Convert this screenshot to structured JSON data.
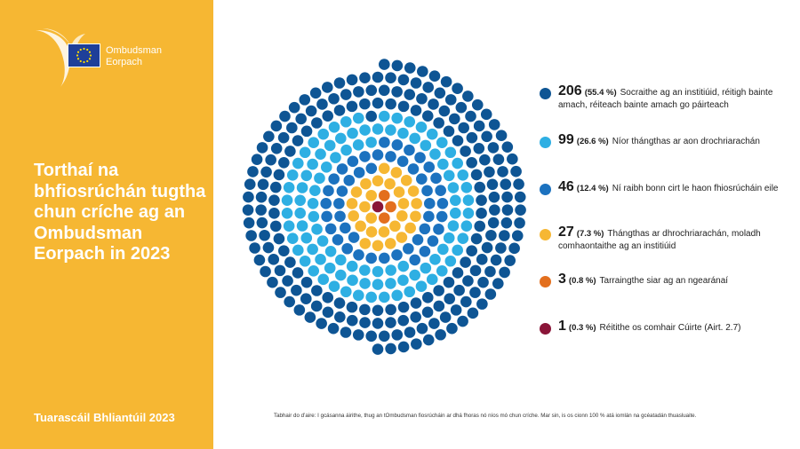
{
  "sidebar": {
    "logo": {
      "line1": "Ombudsman",
      "line2": "Eorpach"
    },
    "title": "Torthaí na bhfiosrúchán tugtha chun críche ag an Ombudsman Eorpach in 2023",
    "footer": "Tuarascáil Bhliantúil 2023"
  },
  "colors": {
    "sidebar": "#F6B733",
    "series": [
      "#0E5594",
      "#2EAFE3",
      "#1C72BF",
      "#F6B733",
      "#E36F1E",
      "#8A1538"
    ]
  },
  "chart_data": {
    "type": "dot-matrix",
    "series": [
      {
        "name": "Socraithe ag an institiúid, réitigh bainte amach, réiteach bainte amach go páirteach",
        "value": 206,
        "percent": "55.4 %"
      },
      {
        "name": "Níor thángthas ar aon drochriarachán",
        "value": 99,
        "percent": "26.6 %"
      },
      {
        "name": "Ní raibh bonn cirt le haon fhiosrúcháin eile",
        "value": 46,
        "percent": "12.4 %"
      },
      {
        "name": "Thángthas ar dhrochriarachán, moladh comhaontaithe ag an institiúid",
        "value": 27,
        "percent": "7.3 %"
      },
      {
        "name": "Tarraingthe siar ag an ngearánaí",
        "value": 3,
        "percent": "0.8 %"
      },
      {
        "name": "Réitithe os comhair Cúirte (Airt. 2.7)",
        "value": 1,
        "percent": "0.3 %"
      }
    ]
  },
  "legend": [
    {
      "value": "206",
      "pct": "(55.4 %)",
      "label": "Socraithe ag an institiúid, réitigh bainte amach, réiteach bainte amach go páirteach"
    },
    {
      "value": "99",
      "pct": "(26.6 %)",
      "label": "Níor thángthas ar aon drochriarachán"
    },
    {
      "value": "46",
      "pct": "(12.4 %)",
      "label": "Ní raibh bonn cirt le haon fhiosrúcháin eile"
    },
    {
      "value": "27",
      "pct": "(7.3 %)",
      "label": "Thángthas ar dhrochriarachán, moladh comhaontaithe ag an institiúid"
    },
    {
      "value": "3",
      "pct": "(0.8 %)",
      "label": "Tarraingthe siar ag an ngearánaí"
    },
    {
      "value": "1",
      "pct": "(0.3 %)",
      "label": "Réitithe os comhair Cúirte (Airt. 2.7)"
    }
  ],
  "footnote": "Tabhair do d’aire: I gcásanna áirithe, thug an tOmbudsman fiosrúcháin ar dhá fhoras nó níos mó chun críche. Mar sin, is os cionn 100 % atá iomlán na gcéatadán thuasluaite."
}
